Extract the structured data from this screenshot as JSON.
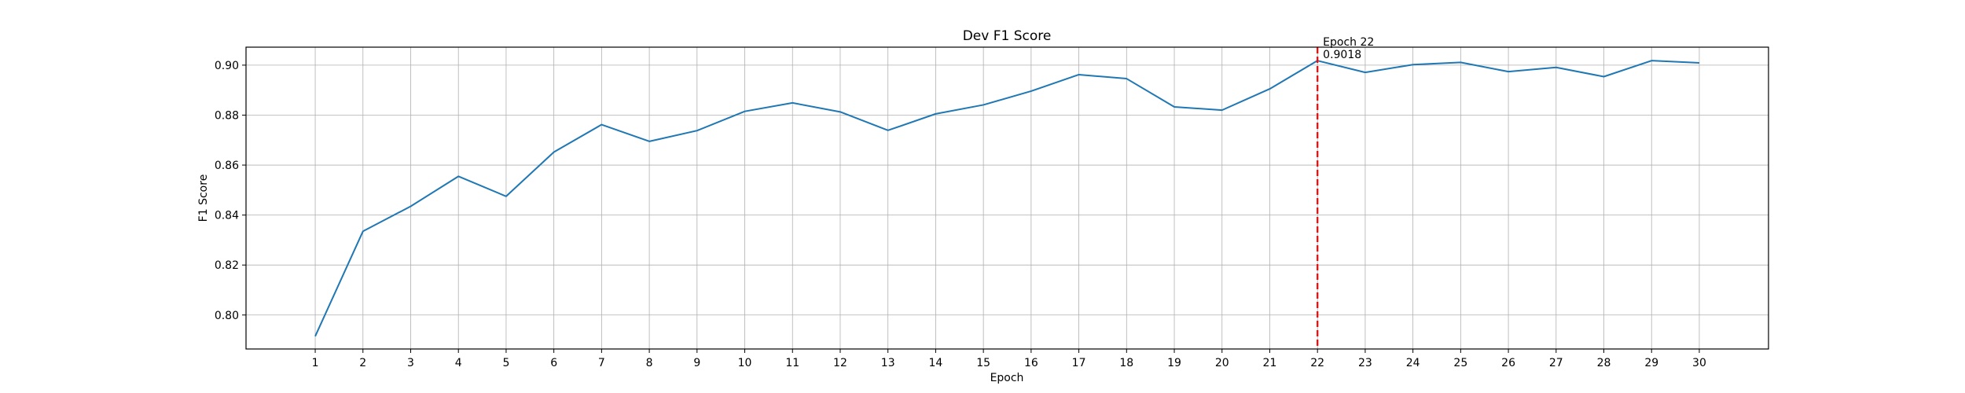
{
  "chart_data": {
    "type": "line",
    "title": "Dev F1 Score",
    "xlabel": "Epoch",
    "ylabel": "F1 Score",
    "xlim": [
      -0.45,
      31.45
    ],
    "ylim": [
      0.7864,
      0.9072
    ],
    "x": [
      1,
      2,
      3,
      4,
      5,
      6,
      7,
      8,
      9,
      10,
      11,
      12,
      13,
      14,
      15,
      16,
      17,
      18,
      19,
      20,
      21,
      22,
      23,
      24,
      25,
      26,
      27,
      28,
      29,
      30
    ],
    "x_tick_labels": [
      "1",
      "2",
      "3",
      "4",
      "5",
      "6",
      "7",
      "8",
      "9",
      "10",
      "11",
      "12",
      "13",
      "14",
      "15",
      "16",
      "17",
      "18",
      "19",
      "20",
      "21",
      "22",
      "23",
      "24",
      "25",
      "26",
      "27",
      "28",
      "29",
      "30"
    ],
    "y_ticks": [
      0.8,
      0.82,
      0.84,
      0.86,
      0.88,
      0.9
    ],
    "y_tick_labels": [
      "0.80",
      "0.82",
      "0.84",
      "0.86",
      "0.88",
      "0.90"
    ],
    "grid": true,
    "series": [
      {
        "values": [
          0.7915,
          0.8335,
          0.8435,
          0.8555,
          0.8475,
          0.8652,
          0.8762,
          0.8695,
          0.8738,
          0.8815,
          0.8849,
          0.8813,
          0.8739,
          0.8805,
          0.8841,
          0.8896,
          0.8962,
          0.8946,
          0.8833,
          0.882,
          0.8905,
          0.9018,
          0.8971,
          0.9002,
          0.9011,
          0.8974,
          0.8991,
          0.8954,
          0.9018,
          0.9009
        ],
        "color": "#1f77b4"
      }
    ],
    "annotations": [
      {
        "type": "vline",
        "x": 22,
        "color": "#ff0000",
        "style": "dashed",
        "label_line1": "Epoch 22",
        "label_line2": "0.9018"
      }
    ]
  }
}
